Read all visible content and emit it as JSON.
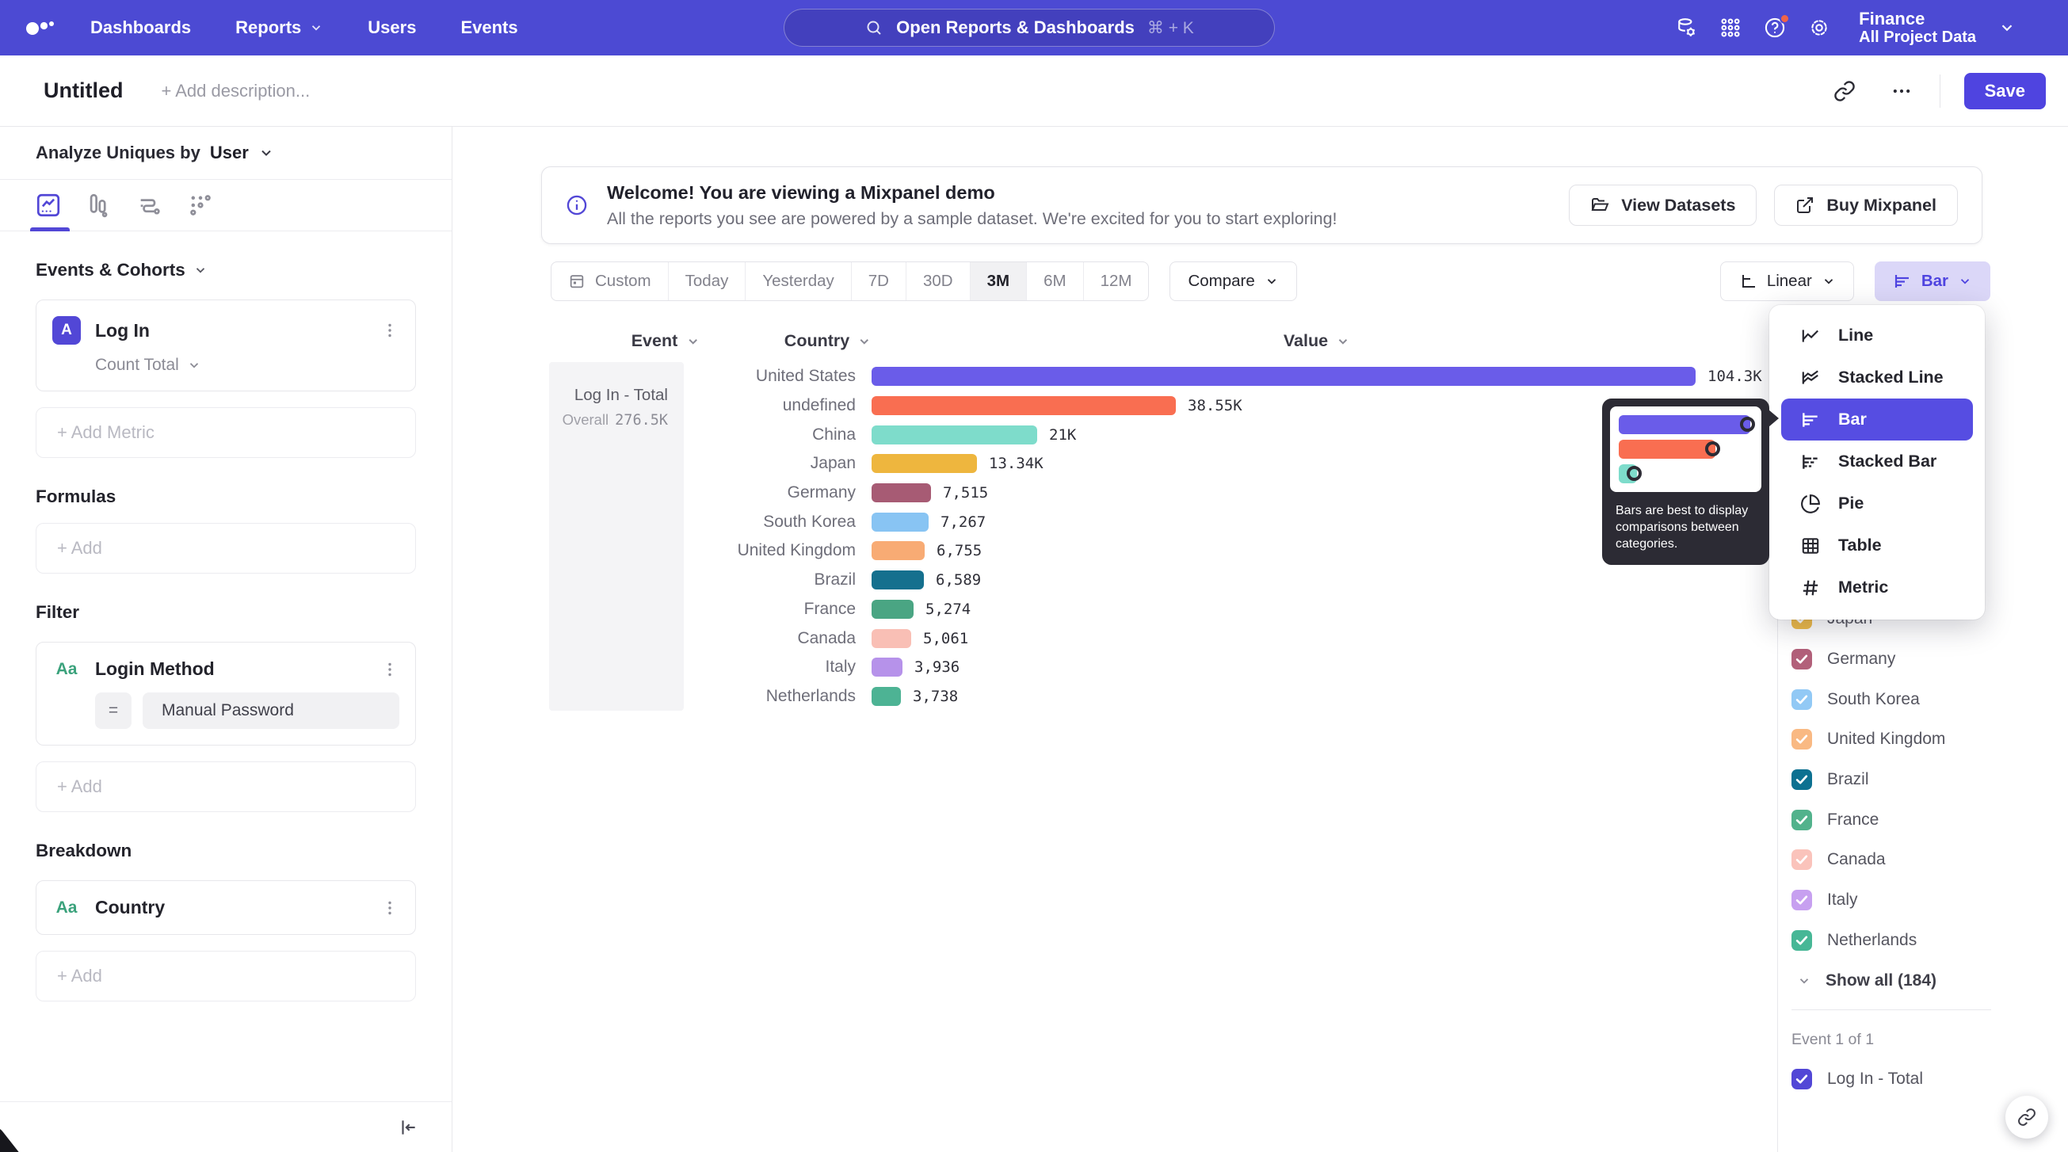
{
  "nav": {
    "items": [
      {
        "label": "Dashboards",
        "chevron": false
      },
      {
        "label": "Reports",
        "chevron": true
      },
      {
        "label": "Users",
        "chevron": false
      },
      {
        "label": "Events",
        "chevron": false
      }
    ],
    "search_placeholder": "Open Reports & Dashboards",
    "search_shortcut": "⌘ + K",
    "project_name": "Finance",
    "project_scope": "All Project Data"
  },
  "header": {
    "title": "Untitled",
    "description_placeholder": "+ Add description...",
    "save_label": "Save"
  },
  "sidebar": {
    "analyze_label": "Analyze Uniques by",
    "analyze_value": "User",
    "events_cohorts_heading": "Events & Cohorts",
    "metric_badge": "A",
    "metric_name": "Log In",
    "metric_aggregation": "Count Total",
    "add_metric_label": "+ Add Metric",
    "formulas_heading": "Formulas",
    "formulas_add_label": "+ Add",
    "filter_heading": "Filter",
    "filter_type_badge": "Aa",
    "filter_name": "Login Method",
    "filter_operator": "=",
    "filter_value": "Manual Password",
    "filter_add_label": "+ Add",
    "breakdown_heading": "Breakdown",
    "breakdown_type_badge": "Aa",
    "breakdown_name": "Country",
    "breakdown_add_label": "+ Add"
  },
  "banner": {
    "title": "Welcome! You are viewing a Mixpanel demo",
    "subtitle": "All the reports you see are powered by a sample dataset. We're excited for you to start exploring!",
    "view_datasets_label": "View Datasets",
    "buy_mixpanel_label": "Buy Mixpanel"
  },
  "controls": {
    "date_ranges": [
      {
        "label": "Custom",
        "icon": "calendar-icon"
      },
      {
        "label": "Today"
      },
      {
        "label": "Yesterday"
      },
      {
        "label": "7D"
      },
      {
        "label": "30D"
      },
      {
        "label": "3M"
      },
      {
        "label": "6M"
      },
      {
        "label": "12M"
      }
    ],
    "selected_range": "3M",
    "compare_label": "Compare",
    "scale_label": "Linear",
    "chart_type_label": "Bar"
  },
  "chart_menu": {
    "items": [
      {
        "label": "Line",
        "icon": "line-chart-icon",
        "selected": false
      },
      {
        "label": "Stacked Line",
        "icon": "stacked-line-icon",
        "selected": false
      },
      {
        "label": "Bar",
        "icon": "bar-chart-icon",
        "selected": true
      },
      {
        "label": "Stacked Bar",
        "icon": "stacked-bar-icon",
        "selected": false
      },
      {
        "label": "Pie",
        "icon": "pie-chart-icon",
        "selected": false
      },
      {
        "label": "Table",
        "icon": "table-icon",
        "selected": false
      },
      {
        "label": "Metric",
        "icon": "metric-hash-icon",
        "selected": false
      }
    ],
    "tooltip_text": "Bars are best to display comparisons between categories.",
    "tooltip_bars": [
      {
        "color": "#6a5ce9",
        "width": 166
      },
      {
        "color": "#f96e51",
        "width": 122
      },
      {
        "color": "#7edccb",
        "width": 23
      }
    ]
  },
  "chart_data": {
    "type": "bar",
    "orientation": "horizontal",
    "headers": {
      "event": "Event",
      "category": "Country",
      "value": "Value"
    },
    "event_name": "Log In - Total",
    "overall_label": "Overall",
    "overall_value": "276.5K",
    "categories": [
      "United States",
      "undefined",
      "China",
      "Japan",
      "Germany",
      "South Korea",
      "United Kingdom",
      "Brazil",
      "France",
      "Canada",
      "Italy",
      "Netherlands"
    ],
    "values": [
      104300,
      38550,
      21000,
      13340,
      7515,
      7267,
      6755,
      6589,
      5274,
      5061,
      3936,
      3738
    ],
    "value_labels": [
      "104.3K",
      "38.55K",
      "21K",
      "13.34K",
      "7,515",
      "7,267",
      "6,755",
      "6,589",
      "5,274",
      "5,061",
      "3,936",
      "3,738"
    ],
    "colors": [
      "#6a5ce9",
      "#f96e51",
      "#7edccb",
      "#eeb63e",
      "#a75b74",
      "#88c4f3",
      "#f8ab74",
      "#15708e",
      "#4aa583",
      "#f9bfb5",
      "#b692ea",
      "#4db394"
    ],
    "textured": [
      false,
      false,
      false,
      false,
      false,
      false,
      false,
      false,
      false,
      false,
      false,
      true
    ],
    "max_value": 104300,
    "xlim": [
      0,
      104300
    ],
    "grid": false,
    "legend_position": "right"
  },
  "legend": {
    "items": [
      {
        "label": "Japan",
        "color": "#efbc4a",
        "checked": true,
        "textured": false
      },
      {
        "label": "Germany",
        "color": "#b2607a",
        "checked": true,
        "textured": false
      },
      {
        "label": "South Korea",
        "color": "#92c9f5",
        "checked": true,
        "textured": false
      },
      {
        "label": "United Kingdom",
        "color": "#f9b983",
        "checked": true,
        "textured": false
      },
      {
        "label": "Brazil",
        "color": "#0d7191",
        "checked": true,
        "textured": false
      },
      {
        "label": "France",
        "color": "#52b28c",
        "checked": true,
        "textured": false
      },
      {
        "label": "Canada",
        "color": "#fac3bb",
        "checked": true,
        "textured": false
      },
      {
        "label": "Italy",
        "color": "#c7a0f0",
        "checked": true,
        "textured": false
      },
      {
        "label": "Netherlands",
        "color": "#47b796",
        "checked": true,
        "textured": true
      }
    ],
    "show_all_label": "Show all (184)",
    "event_count_label": "Event 1 of 1",
    "event_series": {
      "label": "Log In - Total",
      "color": "#5247d6",
      "checked": true
    }
  },
  "colors": {
    "brand": "#4f44e0",
    "nav_bg": "#4c4ad3",
    "menu_selected": "#564de2",
    "tooltip_bg": "#2c2b34"
  }
}
